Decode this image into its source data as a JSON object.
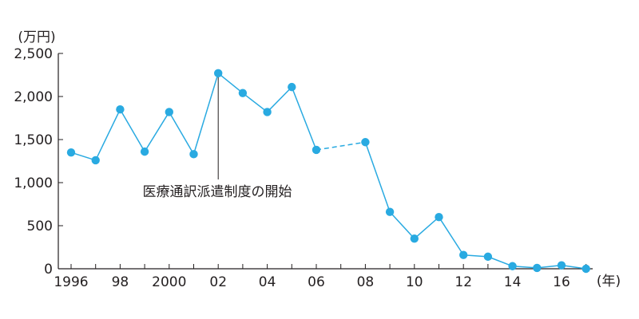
{
  "chart_data": {
    "type": "line",
    "y_unit_label": "(万円)",
    "x_unit_label": "(年)",
    "ylim": [
      0,
      2500
    ],
    "yticks": [
      0,
      500,
      1000,
      1500,
      2000,
      2500
    ],
    "ytick_labels": [
      "0",
      "500",
      "1,000",
      "1,500",
      "2,000",
      "2,500"
    ],
    "xlim": [
      1996,
      2017
    ],
    "xticks": [
      1996,
      1998,
      2000,
      2002,
      2004,
      2006,
      2008,
      2010,
      2012,
      2014,
      2016
    ],
    "xtick_labels": [
      "1996",
      "98",
      "2000",
      "02",
      "04",
      "06",
      "08",
      "10",
      "12",
      "14",
      "16"
    ],
    "x_minor_ticks": [
      1997,
      1999,
      2001,
      2003,
      2005,
      2007,
      2009,
      2011,
      2013,
      2015,
      2017
    ],
    "series": [
      {
        "x": [
          1996,
          1997,
          1998,
          1999,
          2000,
          2001,
          2002,
          2003,
          2004,
          2005,
          2006,
          2008,
          2009,
          2010,
          2011,
          2012,
          2013,
          2014,
          2015,
          2016,
          2017
        ],
        "values": [
          1350,
          1260,
          1850,
          1360,
          1820,
          1330,
          2270,
          2040,
          1820,
          2110,
          1380,
          1470,
          660,
          350,
          600,
          160,
          140,
          30,
          10,
          40,
          0
        ]
      }
    ],
    "gap_dashed_between": [
      2006,
      2008
    ],
    "annotation": {
      "text": "医療通訳派遣制度の開始",
      "x": 2002
    },
    "color": "#29aae1",
    "grid": false
  }
}
